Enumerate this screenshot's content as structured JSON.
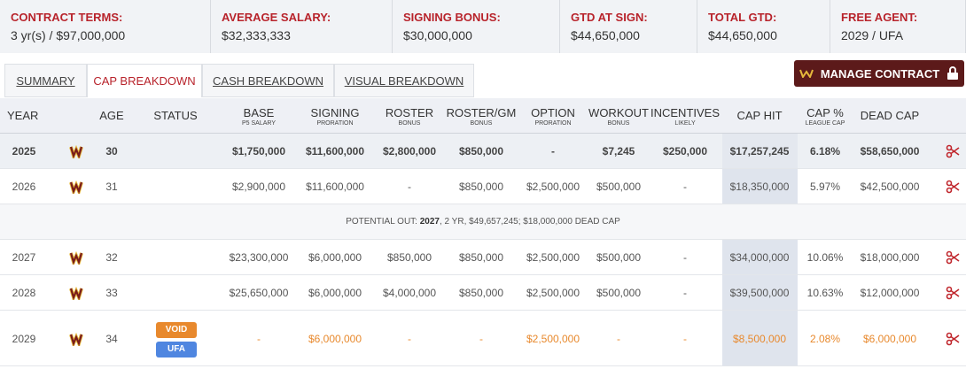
{
  "summary": [
    {
      "label": "CONTRACT TERMS:",
      "value": "3 yr(s) / $97,000,000"
    },
    {
      "label": "AVERAGE SALARY:",
      "value": "$32,333,333"
    },
    {
      "label": "SIGNING BONUS:",
      "value": "$30,000,000"
    },
    {
      "label": "GTD AT SIGN:",
      "value": "$44,650,000"
    },
    {
      "label": "TOTAL GTD:",
      "value": "$44,650,000"
    },
    {
      "label": "FREE AGENT:",
      "value": "2029 / UFA"
    }
  ],
  "tabs": [
    "SUMMARY",
    "CAP BREAKDOWN",
    "CASH BREAKDOWN",
    "VISUAL BREAKDOWN"
  ],
  "active_tab": "CAP BREAKDOWN",
  "button": "MANAGE CONTRACT",
  "table": {
    "columns": [
      {
        "label": "YEAR"
      },
      {
        "label": "AGE"
      },
      {
        "label": "STATUS"
      },
      {
        "label": "BASE",
        "sub": "P5 SALARY"
      },
      {
        "label": "SIGNING",
        "sub": "PRORATION"
      },
      {
        "label": "ROSTER",
        "sub": "BONUS"
      },
      {
        "label": "ROSTER/GM",
        "sub": "BONUS"
      },
      {
        "label": "OPTION",
        "sub": "PRORATION"
      },
      {
        "label": "WORKOUT",
        "sub": "BONUS"
      },
      {
        "label": "INCENTIVES",
        "sub": "LIKELY"
      },
      {
        "label": "CAP HIT"
      },
      {
        "label": "CAP %",
        "sub": "LEAGUE CAP"
      },
      {
        "label": "DEAD CAP"
      }
    ],
    "rows": [
      {
        "year": "2025",
        "age": "30",
        "status": [],
        "cells": [
          "$1,750,000",
          "$11,600,000",
          "$2,800,000",
          "$850,000",
          "-",
          "$7,245",
          "$250,000",
          "$17,257,245",
          "6.18%",
          "$58,650,000"
        ]
      },
      {
        "year": "2026",
        "age": "31",
        "status": [],
        "cells": [
          "$2,900,000",
          "$11,600,000",
          "-",
          "$850,000",
          "$2,500,000",
          "$500,000",
          "-",
          "$18,350,000",
          "5.97%",
          "$42,500,000"
        ]
      },
      {
        "year": "2027",
        "age": "32",
        "status": [],
        "cells": [
          "$23,300,000",
          "$6,000,000",
          "$850,000",
          "$850,000",
          "$2,500,000",
          "$500,000",
          "-",
          "$34,000,000",
          "10.06%",
          "$18,000,000"
        ]
      },
      {
        "year": "2028",
        "age": "33",
        "status": [],
        "cells": [
          "$25,650,000",
          "$6,000,000",
          "$4,000,000",
          "$850,000",
          "$2,500,000",
          "$500,000",
          "-",
          "$39,500,000",
          "10.63%",
          "$12,000,000"
        ]
      },
      {
        "year": "2029",
        "age": "34",
        "status": [
          "VOID",
          "UFA"
        ],
        "cells": [
          "-",
          "$6,000,000",
          "-",
          "-",
          "$2,500,000",
          "-",
          "-",
          "$8,500,000",
          "2.08%",
          "$6,000,000"
        ]
      }
    ],
    "note": {
      "prefix": "POTENTIAL OUT: ",
      "year": "2027",
      "rest": ", 2 YR, $49,657,245; $18,000,000 DEAD CAP"
    }
  }
}
